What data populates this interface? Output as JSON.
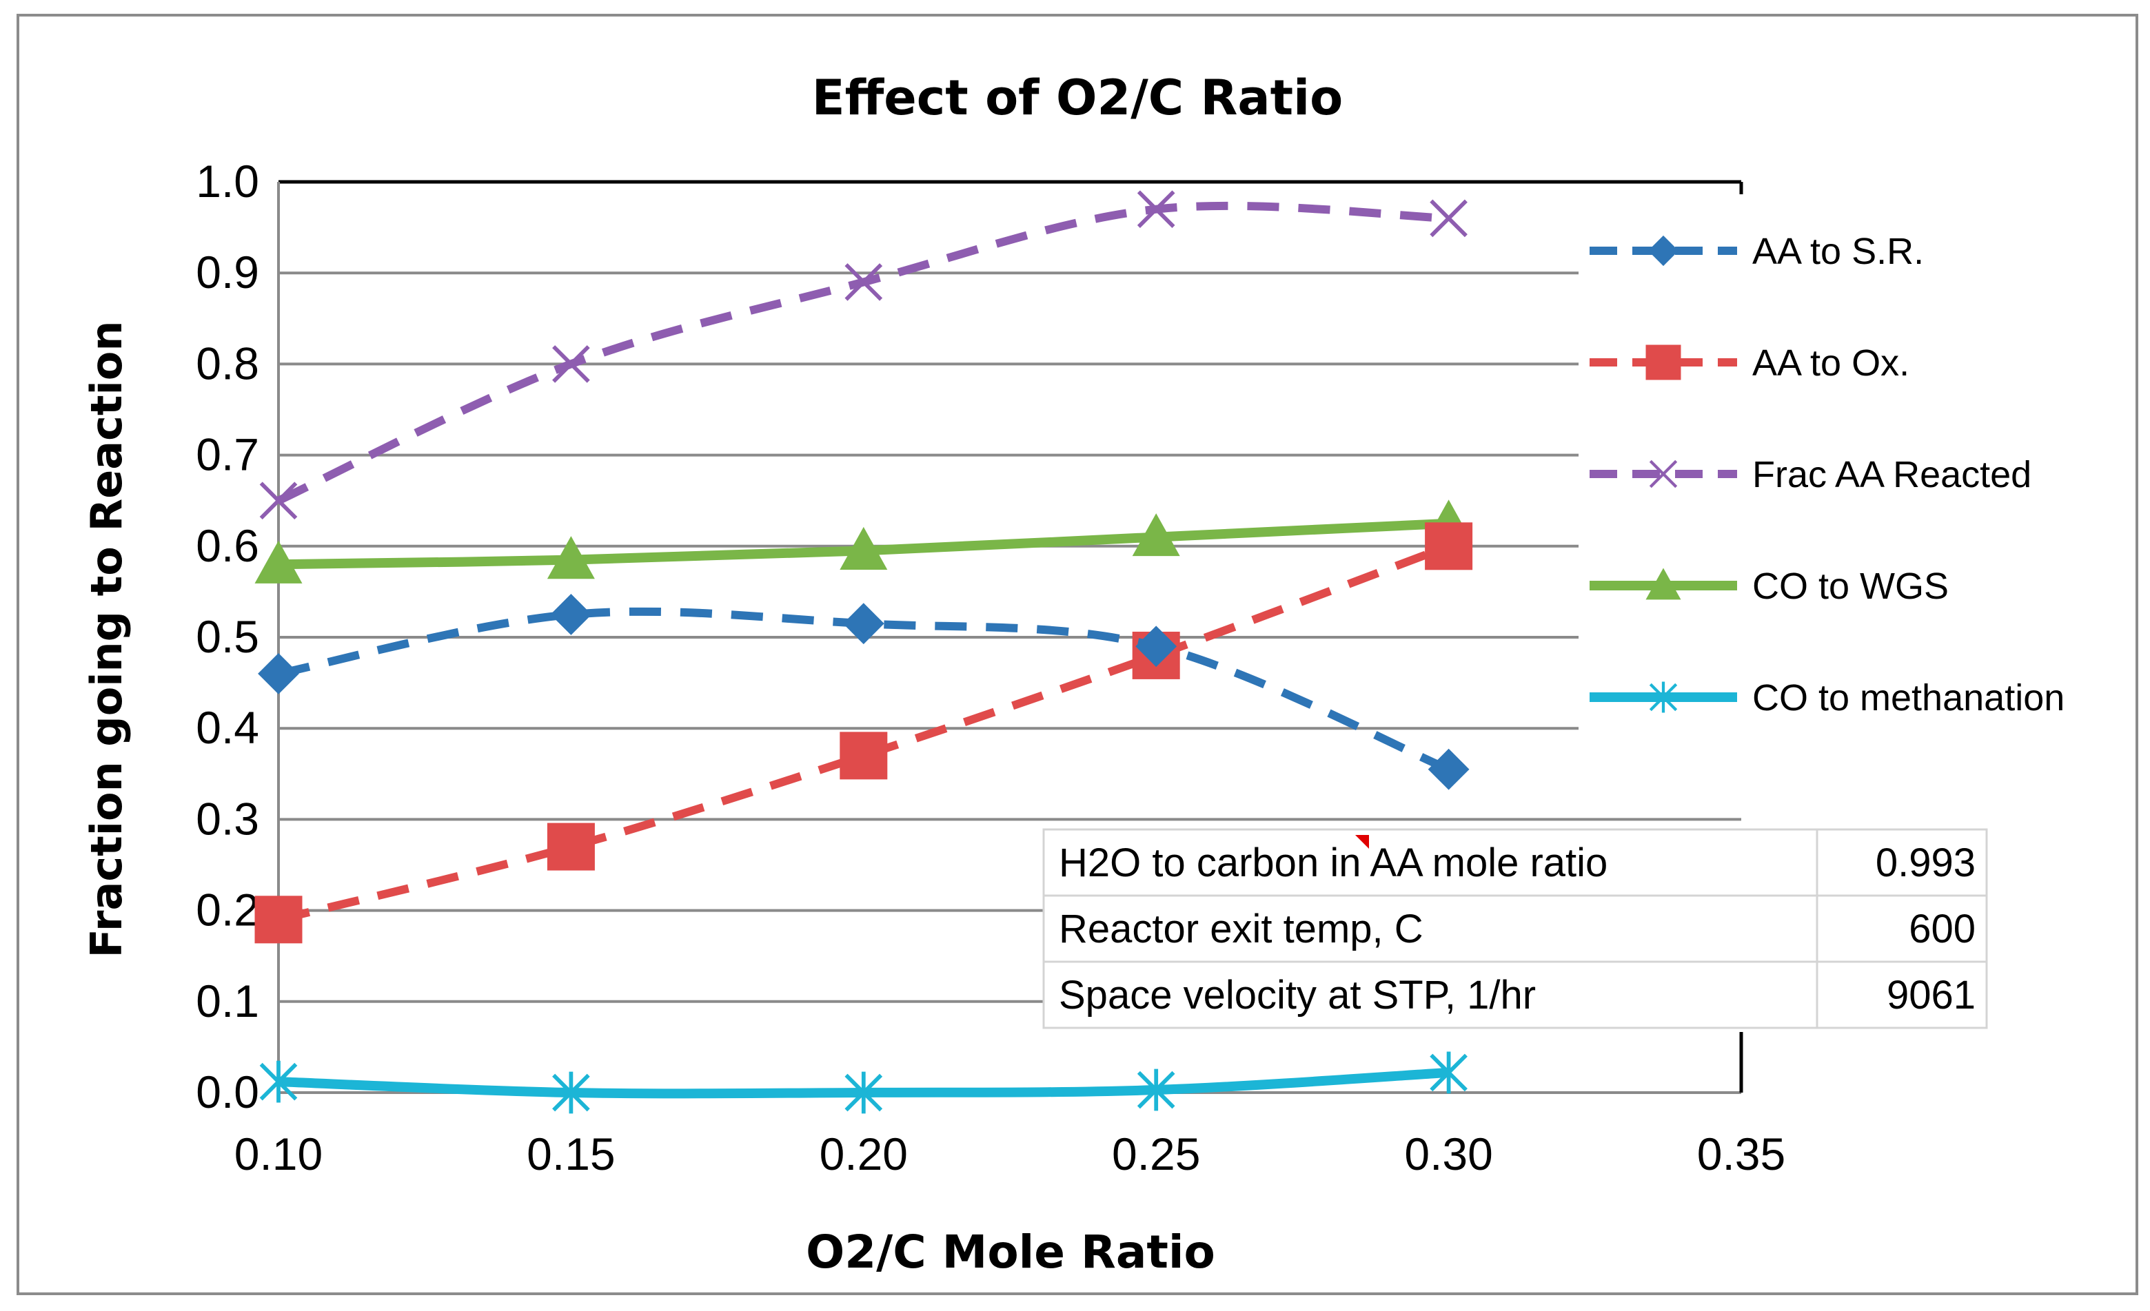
{
  "chart_data": {
    "type": "line",
    "title": "Effect of O2/C Ratio",
    "xlabel": "O2/C Mole Ratio",
    "ylabel": "Fraction going to Reaction",
    "xlim": [
      0.1,
      0.35
    ],
    "ylim": [
      0.0,
      1.0
    ],
    "xticks": [
      "0.10",
      "0.15",
      "0.20",
      "0.25",
      "0.30",
      "0.35"
    ],
    "yticks": [
      "0.0",
      "0.1",
      "0.2",
      "0.3",
      "0.4",
      "0.5",
      "0.6",
      "0.7",
      "0.8",
      "0.9",
      "1.0"
    ],
    "grid": "horizontal",
    "legend_position": "right",
    "x": [
      0.1,
      0.15,
      0.2,
      0.25,
      0.3
    ],
    "series": [
      {
        "name": "AA to S.R.",
        "values": [
          0.46,
          0.525,
          0.515,
          0.49,
          0.355
        ],
        "color": "#2E75B6",
        "dash": "dashed",
        "marker": "diamond"
      },
      {
        "name": "AA to Ox.",
        "values": [
          0.19,
          0.27,
          0.37,
          0.48,
          0.6
        ],
        "color": "#E04B4B",
        "dash": "dashed",
        "marker": "square"
      },
      {
        "name": "Frac AA Reacted",
        "values": [
          0.65,
          0.8,
          0.89,
          0.97,
          0.96
        ],
        "color": "#8E5DB0",
        "dash": "dashed",
        "marker": "x"
      },
      {
        "name": "CO to WGS",
        "values": [
          0.58,
          0.585,
          0.595,
          0.61,
          0.625
        ],
        "color": "#7AB648",
        "dash": "solid",
        "marker": "triangle"
      },
      {
        "name": "CO to methanation",
        "values": [
          0.012,
          0.0,
          0.0,
          0.003,
          0.022
        ],
        "color": "#1CB5D6",
        "dash": "solid",
        "marker": "star"
      }
    ]
  },
  "info_table": {
    "rows": [
      {
        "label": "H2O to carbon in AA mole ratio",
        "value": "0.993"
      },
      {
        "label": "Reactor exit temp, C",
        "value": "600"
      },
      {
        "label": "Space velocity at STP, 1/hr",
        "value": "9061"
      }
    ]
  }
}
